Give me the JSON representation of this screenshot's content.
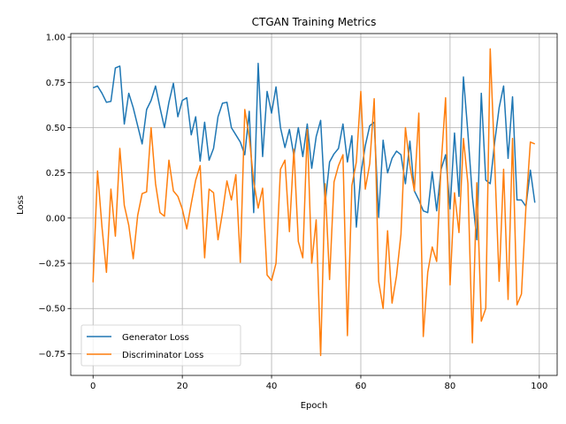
{
  "chart_data": {
    "type": "line",
    "title": "CTGAN Training Metrics",
    "xlabel": "Epoch",
    "ylabel": "Loss",
    "xlim": [
      -5,
      104
    ],
    "ylim": [
      -0.87,
      1.02
    ],
    "xticks": [
      0,
      20,
      40,
      60,
      80,
      100
    ],
    "yticks": [
      -0.75,
      -0.5,
      -0.25,
      0.0,
      0.25,
      0.5,
      0.75,
      1.0
    ],
    "xtick_labels": [
      "0",
      "20",
      "40",
      "60",
      "80",
      "100"
    ],
    "ytick_labels": [
      "−0.75",
      "−0.50",
      "−0.25",
      "0.00",
      "0.25",
      "0.50",
      "0.75",
      "1.00"
    ],
    "grid": true,
    "legend_position": "lower-left",
    "x": [
      0,
      1,
      2,
      3,
      4,
      5,
      6,
      7,
      8,
      9,
      10,
      11,
      12,
      13,
      14,
      15,
      16,
      17,
      18,
      19,
      20,
      21,
      22,
      23,
      24,
      25,
      26,
      27,
      28,
      29,
      30,
      31,
      32,
      33,
      34,
      35,
      36,
      37,
      38,
      39,
      40,
      41,
      42,
      43,
      44,
      45,
      46,
      47,
      48,
      49,
      50,
      51,
      52,
      53,
      54,
      55,
      56,
      57,
      58,
      59,
      60,
      61,
      62,
      63,
      64,
      65,
      66,
      67,
      68,
      69,
      70,
      71,
      72,
      73,
      74,
      75,
      76,
      77,
      78,
      79,
      80,
      81,
      82,
      83,
      84,
      85,
      86,
      87,
      88,
      89,
      90,
      91,
      92,
      93,
      94,
      95,
      96,
      97,
      98,
      99
    ],
    "series": [
      {
        "name": "Generator Loss",
        "color": "#1f77b4",
        "values": [
          0.72,
          0.73,
          0.69,
          0.64,
          0.645,
          0.83,
          0.84,
          0.52,
          0.69,
          0.61,
          0.51,
          0.41,
          0.6,
          0.65,
          0.73,
          0.61,
          0.5,
          0.64,
          0.745,
          0.56,
          0.65,
          0.665,
          0.46,
          0.56,
          0.315,
          0.53,
          0.32,
          0.385,
          0.56,
          0.635,
          0.64,
          0.5,
          0.46,
          0.42,
          0.35,
          0.59,
          0.03,
          0.855,
          0.34,
          0.7,
          0.58,
          0.725,
          0.5,
          0.39,
          0.49,
          0.345,
          0.5,
          0.34,
          0.52,
          0.275,
          0.45,
          0.54,
          0.08,
          0.31,
          0.355,
          0.385,
          0.52,
          0.31,
          0.455,
          -0.05,
          0.24,
          0.4,
          0.51,
          0.53,
          0.005,
          0.43,
          0.25,
          0.33,
          0.37,
          0.35,
          0.19,
          0.425,
          0.15,
          0.1,
          0.04,
          0.03,
          0.255,
          0.04,
          0.27,
          0.35,
          0.05,
          0.47,
          0.12,
          0.78,
          0.47,
          0.12,
          -0.12,
          0.69,
          0.21,
          0.19,
          0.42,
          0.61,
          0.73,
          0.33,
          0.67,
          0.1,
          0.1,
          0.065,
          0.265,
          0.085
        ]
      },
      {
        "name": "Discriminator Loss",
        "color": "#ff7f0e",
        "values": [
          -0.355,
          0.26,
          -0.05,
          -0.3,
          0.16,
          -0.1,
          0.385,
          0.07,
          -0.04,
          -0.225,
          0.015,
          0.135,
          0.145,
          0.5,
          0.19,
          0.03,
          0.01,
          0.32,
          0.15,
          0.12,
          0.05,
          -0.06,
          0.08,
          0.21,
          0.29,
          -0.22,
          0.16,
          0.14,
          -0.12,
          0.03,
          0.205,
          0.1,
          0.24,
          -0.245,
          0.6,
          0.45,
          0.2,
          0.055,
          0.165,
          -0.315,
          -0.345,
          -0.25,
          0.27,
          0.32,
          -0.075,
          0.38,
          -0.13,
          -0.22,
          0.49,
          -0.25,
          -0.01,
          -0.76,
          0.19,
          -0.34,
          0.2,
          0.29,
          0.35,
          -0.65,
          0.18,
          0.31,
          0.7,
          0.16,
          0.3,
          0.66,
          -0.35,
          -0.5,
          -0.07,
          -0.47,
          -0.32,
          -0.09,
          0.5,
          0.29,
          0.15,
          0.58,
          -0.655,
          -0.3,
          -0.16,
          -0.24,
          0.295,
          0.665,
          -0.37,
          0.14,
          -0.08,
          0.44,
          0.19,
          -0.69,
          0.195,
          -0.57,
          -0.5,
          0.935,
          0.31,
          -0.35,
          0.27,
          -0.45,
          0.44,
          -0.48,
          -0.42,
          0.06,
          0.42,
          0.41
        ]
      }
    ]
  }
}
